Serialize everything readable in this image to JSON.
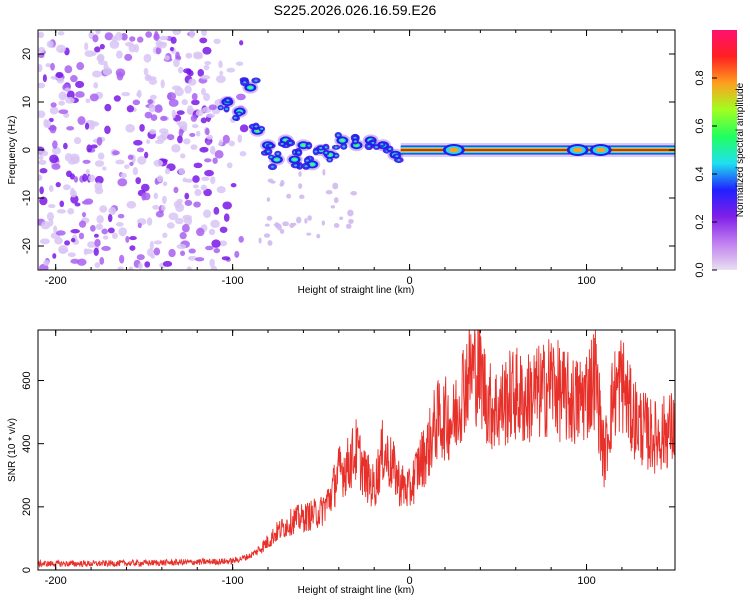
{
  "title": "S225.2026.026.16.59.E26",
  "colors": {
    "snr_line": "#e8302a",
    "band_core": "#e8202a",
    "cbar_stops": [
      "#e8e0f0",
      "#c080f0",
      "#8020e8",
      "#2020ff",
      "#20e0f0",
      "#20ff60",
      "#a0ff20",
      "#ffa020",
      "#ff2020",
      "#ff1070"
    ]
  },
  "chart_data": [
    {
      "type": "heatmap",
      "title": "S225.2026.026.16.59.E26",
      "xlabel": "Height of straight line (km)",
      "ylabel": "Frequency (Hz)",
      "xlim": [
        -210,
        150
      ],
      "ylim": [
        -25,
        25
      ],
      "xticks": [
        -200,
        -100,
        0,
        100
      ],
      "xtick_labels": [
        "-200",
        "-100",
        "0",
        "100"
      ],
      "yticks": [
        20,
        10,
        0,
        -10,
        -20
      ],
      "ytick_labels": [
        "20",
        "10",
        "0",
        "-10",
        "-20"
      ],
      "colorbar": {
        "label": "Normalized spectral amplitude",
        "range": [
          0,
          1
        ],
        "ticks": [
          0.0,
          0.2,
          0.4,
          0.6,
          0.8
        ],
        "tick_labels": [
          "0.0",
          "0.2",
          "0.4",
          "0.6",
          "0.8"
        ]
      },
      "features": [
        {
          "name": "noise scatter",
          "x_range": [
            -210,
            -90
          ],
          "y_range": [
            -25,
            25
          ],
          "amplitude": 0.12
        },
        {
          "name": "meteor blobs",
          "x": [
            -103,
            -96,
            -90,
            -86,
            -80,
            -75,
            -70,
            -65,
            -60,
            -55,
            -50,
            -45,
            -38,
            -30,
            -22,
            -15,
            -8
          ],
          "y": [
            10,
            8,
            13,
            4,
            1,
            -2,
            2,
            -2,
            1,
            -3,
            0,
            -1,
            2,
            1,
            2,
            1,
            -1
          ],
          "amplitude": 0.45
        },
        {
          "name": "steady band",
          "x_range": [
            -5,
            150
          ],
          "y": 0,
          "amplitude": 0.95
        }
      ]
    },
    {
      "type": "line",
      "xlabel": "Height of straight line (km)",
      "ylabel": "SNR (10 * v/v)",
      "xlim": [
        -210,
        150
      ],
      "ylim": [
        0,
        760
      ],
      "xticks": [
        -200,
        -100,
        0,
        100
      ],
      "xtick_labels": [
        "-200",
        "-100",
        "0",
        "100"
      ],
      "yticks": [
        0,
        200,
        400,
        600
      ],
      "ytick_labels": [
        "0",
        "200",
        "400",
        "600"
      ],
      "series": [
        {
          "name": "SNR",
          "x": [
            -210,
            -180,
            -150,
            -120,
            -100,
            -90,
            -85,
            -80,
            -75,
            -70,
            -65,
            -60,
            -55,
            -50,
            -45,
            -40,
            -35,
            -30,
            -25,
            -20,
            -15,
            -10,
            -5,
            0,
            5,
            10,
            15,
            20,
            25,
            30,
            35,
            40,
            45,
            50,
            55,
            60,
            65,
            70,
            75,
            80,
            85,
            90,
            95,
            100,
            105,
            110,
            115,
            120,
            125,
            130,
            135,
            140,
            145,
            150
          ],
          "y": [
            20,
            20,
            22,
            25,
            28,
            45,
            65,
            90,
            120,
            140,
            160,
            165,
            175,
            185,
            230,
            310,
            330,
            380,
            300,
            260,
            380,
            330,
            270,
            250,
            330,
            380,
            470,
            480,
            470,
            580,
            640,
            620,
            520,
            510,
            540,
            560,
            530,
            560,
            560,
            600,
            560,
            540,
            530,
            560,
            620,
            350,
            550,
            600,
            500,
            460,
            430,
            420,
            440,
            450
          ]
        }
      ]
    }
  ]
}
